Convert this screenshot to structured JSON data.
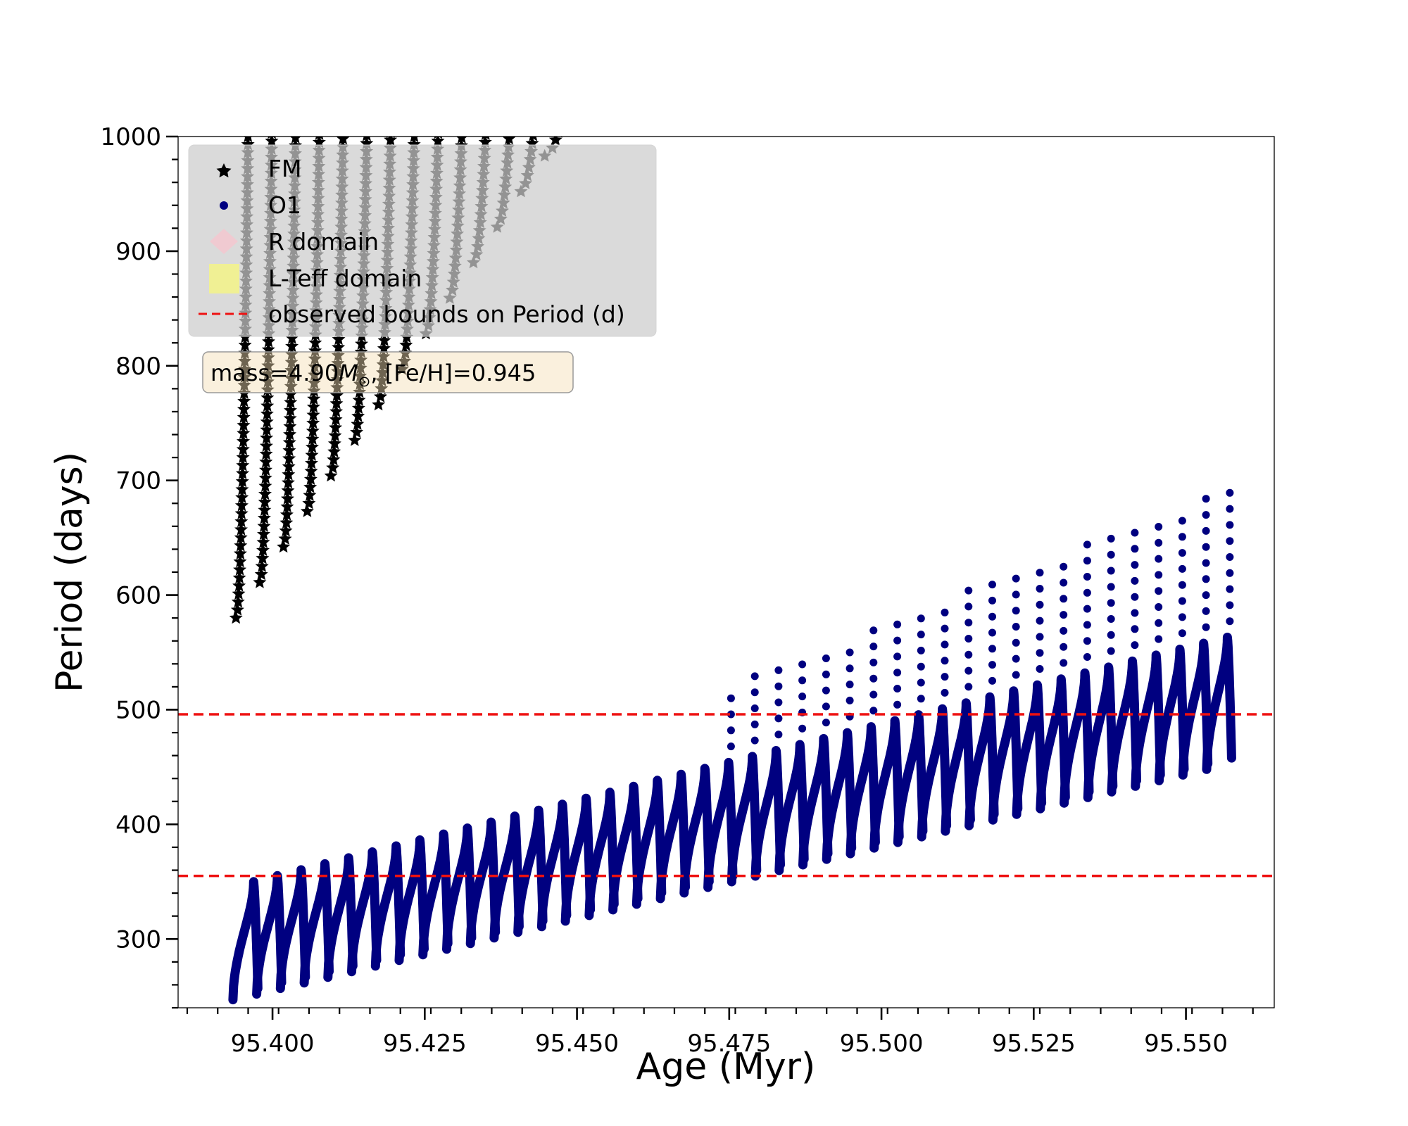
{
  "chart_data": {
    "type": "scatter",
    "title": "",
    "xlabel": "Age (Myr)",
    "ylabel": "Period (days)",
    "xlim": [
      95.3845,
      95.5645
    ],
    "ylim": [
      240,
      1000
    ],
    "xticks": [
      95.4,
      95.425,
      95.45,
      95.475,
      95.5,
      95.525,
      95.55
    ],
    "xtick_labels": [
      "95.400",
      "95.425",
      "95.450",
      "95.475",
      "95.500",
      "95.525",
      "95.550"
    ],
    "x_minor_step": 0.005,
    "yticks": [
      300,
      400,
      500,
      600,
      700,
      800,
      900,
      1000
    ],
    "ytick_labels": [
      "300",
      "400",
      "500",
      "600",
      "700",
      "800",
      "900",
      "1000"
    ],
    "y_minor_step": 20,
    "annotation": {
      "prefix": "mass=4.90",
      "symbol": "M",
      "subscript": "⊙",
      "suffix": ", [Fe/H]=0.945"
    },
    "reference_lines": {
      "name": "observed bounds on Period (d)",
      "color": "#ee1111",
      "style": "dashed",
      "values": [
        355,
        496
      ]
    },
    "legend": {
      "placement": "upper-left",
      "entries": [
        {
          "label": "FM",
          "marker": "star",
          "color": "#000000"
        },
        {
          "label": "O1",
          "marker": "circle",
          "color": "#000080"
        },
        {
          "label": "R domain",
          "marker": "diamond",
          "color": "#ffc0cb"
        },
        {
          "label": "L-Teff domain",
          "marker": "square",
          "color": "#ffff66"
        },
        {
          "label": "observed bounds on Period (d)",
          "marker": "dashed-line",
          "color": "#ee1111"
        }
      ]
    },
    "series": [
      {
        "name": "FM",
        "marker": "star",
        "color": "#000000",
        "age_start": 95.394,
        "age_step": 0.0039,
        "count": 37,
        "cycle_width": 0.0022,
        "period_min_start": 580,
        "period_min_step": 31,
        "period_max": 1000
      },
      {
        "name": "O1",
        "marker": "circle",
        "color": "#000080",
        "age_start": 95.3935,
        "age_step": 0.0039,
        "count": 42,
        "cycle_width": 0.0034,
        "period_min_start": 247,
        "period_min_step": 4.9,
        "period_dense_top_start": 350,
        "period_dense_top_step": 5.2,
        "period_sparse_top_start": 355,
        "period_sparse_top_step": 8.3,
        "sparse_from_index": 20
      }
    ]
  }
}
